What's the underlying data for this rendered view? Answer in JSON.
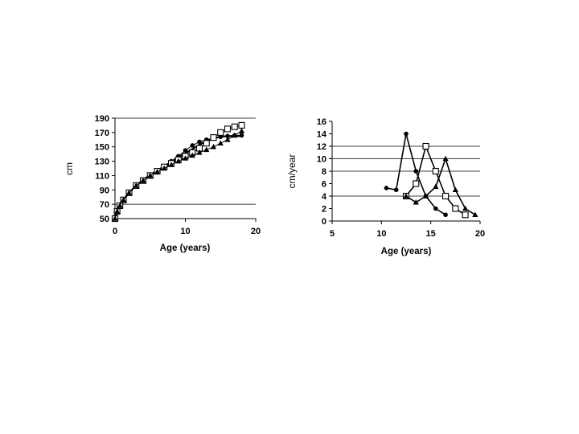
{
  "chart_data": [
    {
      "type": "line",
      "xlabel": "Age (years)",
      "ylabel": "cm",
      "xlim": [
        0,
        20
      ],
      "ylim": [
        50,
        190
      ],
      "xticks": [
        "0",
        "10",
        "20"
      ],
      "yticks": [
        "50",
        "70",
        "90",
        "110",
        "130",
        "150",
        "170",
        "190"
      ],
      "gridlines_y": [
        70,
        190
      ],
      "series": [
        {
          "marker": "none",
          "style": "thick",
          "x": [
            0,
            0.3,
            0.7,
            1.2,
            2,
            3,
            4,
            5,
            6,
            7,
            8,
            9,
            10,
            11,
            12,
            13,
            14,
            15,
            16,
            17,
            18
          ],
          "y": [
            50,
            60,
            68,
            76,
            86,
            96,
            104,
            111,
            117,
            123,
            129,
            135,
            141,
            147,
            153,
            158,
            162,
            164,
            165,
            165,
            165
          ]
        },
        {
          "marker": "circle",
          "style": "thin",
          "x": [
            0,
            0.3,
            0.7,
            1.2,
            2,
            3,
            4,
            5,
            6,
            7,
            8,
            9,
            10,
            11,
            12,
            13,
            14,
            15,
            16,
            17,
            18
          ],
          "y": [
            50,
            60,
            68,
            76,
            86,
            96,
            103,
            110,
            116,
            123,
            130,
            137,
            145,
            152,
            157,
            160,
            162,
            164,
            165,
            166,
            166
          ]
        },
        {
          "marker": "square",
          "style": "thin",
          "x": [
            0,
            0.3,
            0.7,
            1.2,
            2,
            3,
            4,
            5,
            6,
            7,
            8,
            9,
            10,
            11,
            12,
            13,
            14,
            15,
            16,
            17,
            18
          ],
          "y": [
            50,
            60,
            68,
            76,
            86,
            96,
            103,
            110,
            116,
            122,
            127,
            132,
            137,
            142,
            148,
            155,
            163,
            170,
            175,
            178,
            180
          ]
        },
        {
          "marker": "triangle",
          "style": "thin",
          "x": [
            0,
            0.3,
            0.7,
            1.2,
            2,
            3,
            4,
            5,
            6,
            7,
            8,
            9,
            10,
            11,
            12,
            13,
            14,
            15,
            16,
            17,
            18
          ],
          "y": [
            50,
            60,
            68,
            76,
            86,
            96,
            103,
            110,
            115,
            120,
            125,
            130,
            134,
            138,
            142,
            146,
            150,
            155,
            160,
            166,
            172
          ]
        }
      ]
    },
    {
      "type": "line",
      "xlabel": "Age (years)",
      "ylabel": "cm/year",
      "xlim": [
        5,
        20
      ],
      "ylim": [
        0,
        16
      ],
      "xticks": [
        "5",
        "10",
        "15",
        "20"
      ],
      "yticks": [
        "0",
        "2",
        "4",
        "6",
        "8",
        "10",
        "12",
        "14",
        "16"
      ],
      "gridlines_y": [
        4,
        8,
        10,
        12
      ],
      "series": [
        {
          "marker": "circle",
          "x": [
            10.5,
            11.5,
            12.5,
            13.5,
            14.5,
            15.5,
            16.5
          ],
          "y": [
            5.3,
            5.0,
            14.0,
            8.0,
            4.0,
            2.0,
            1.0
          ]
        },
        {
          "marker": "square",
          "x": [
            12.5,
            13.5,
            14.5,
            15.5,
            16.5,
            17.5,
            18.5
          ],
          "y": [
            4.0,
            6.0,
            12.0,
            8.0,
            4.0,
            2.0,
            1.0
          ]
        },
        {
          "marker": "triangle",
          "x": [
            12.5,
            13.5,
            14.5,
            15.5,
            16.5,
            17.5,
            18.5,
            19.5
          ],
          "y": [
            4.0,
            3.0,
            4.0,
            5.5,
            10.0,
            5.0,
            2.0,
            1.0
          ]
        }
      ]
    }
  ]
}
